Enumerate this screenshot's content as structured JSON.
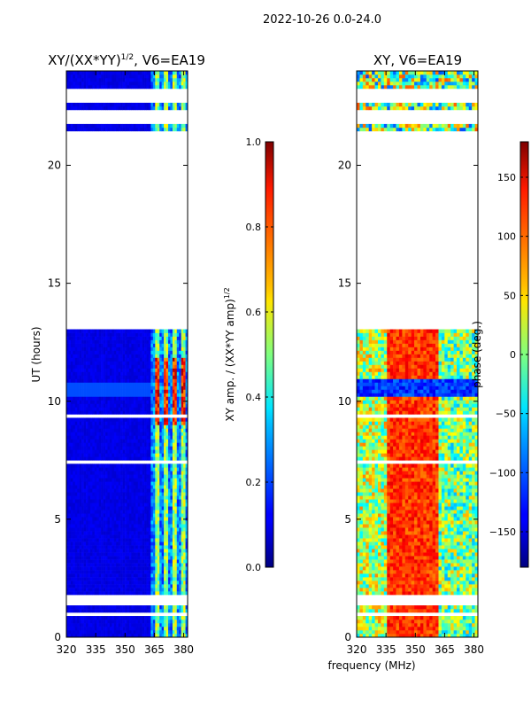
{
  "header": {
    "date_range": "2022-10-26 0.0-24.0"
  },
  "chart_data": [
    {
      "type": "heatmap",
      "title": "XY/(XX*YY)",
      "title_exp": "1/2",
      "title_suffix": ", V6=EA19",
      "xlabel": "",
      "ylabel": "UT (hours)",
      "xlim": [
        320,
        382
      ],
      "ylim": [
        0,
        24
      ],
      "xticks": [
        "320",
        "335",
        "350",
        "365",
        "380"
      ],
      "yticks": [
        "0",
        "5",
        "10",
        "15",
        "20"
      ],
      "colorbar": {
        "label": "XY amp. / (XX*YY amp)",
        "label_exp": "1/2",
        "range": [
          0.0,
          1.0
        ],
        "ticks": [
          "0.0",
          "0.2",
          "0.4",
          "0.6",
          "0.8",
          "1.0"
        ]
      },
      "data_gaps_hours": [
        [
          13.0,
          21.5
        ],
        [
          21.8,
          22.2
        ],
        [
          22.7,
          23.1
        ],
        [
          1.4,
          1.8
        ]
      ],
      "active_band_mhz": [
        363,
        382
      ]
    },
    {
      "type": "heatmap",
      "title": "XY, V6=EA19",
      "xlabel": "frequency (MHz)",
      "ylabel": "",
      "xlim": [
        320,
        382
      ],
      "ylim": [
        0,
        24
      ],
      "xticks": [
        "320",
        "335",
        "350",
        "365",
        "380"
      ],
      "yticks": [
        "0",
        "5",
        "10",
        "15",
        "20"
      ],
      "colorbar": {
        "label": "phase (deg.)",
        "range": [
          -180,
          180
        ],
        "ticks": [
          "-150",
          "-100",
          "-50",
          "0",
          "50",
          "100",
          "150"
        ]
      },
      "data_gaps_hours": [
        [
          13.0,
          21.5
        ],
        [
          21.8,
          22.2
        ],
        [
          22.7,
          23.1
        ],
        [
          1.4,
          1.8
        ]
      ]
    }
  ]
}
